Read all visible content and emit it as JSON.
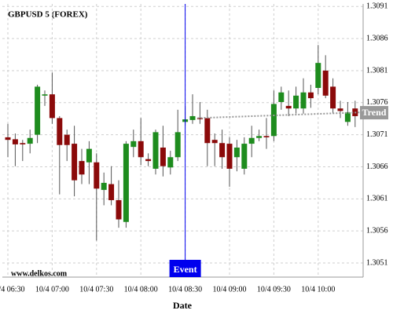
{
  "chart_data": {
    "type": "candlestick",
    "title": "GBPUSD 5 (FOREX)",
    "watermark": "www.delkos.com",
    "x_label": "Date",
    "categories": [
      "10/4 06:30",
      null,
      null,
      null,
      null,
      null,
      "10/4 07:00",
      null,
      null,
      null,
      null,
      null,
      "10/4 07:30",
      null,
      null,
      null,
      null,
      null,
      "10/4 08:00",
      null,
      null,
      null,
      null,
      null,
      "10/4 08:30",
      null,
      null,
      null,
      null,
      null,
      "10/4 09:00",
      null,
      null,
      null,
      null,
      null,
      "10/4 09:30",
      null,
      null,
      null,
      null,
      null,
      "10/4 10:00",
      null,
      null,
      null,
      null,
      null
    ],
    "series": [
      {
        "name": "GBPUSD",
        "open": [
          1.30706,
          1.30703,
          1.30697,
          1.30696,
          1.3071,
          1.30771,
          1.30773,
          1.30736,
          1.3071,
          1.30696,
          1.30669,
          1.30667,
          1.30667,
          1.30624,
          1.30633,
          1.30608,
          1.30574,
          1.30691,
          1.307,
          1.30672,
          1.30657,
          1.3069,
          1.30659,
          1.30675,
          1.3073,
          1.30733,
          1.30736,
          1.30736,
          1.30702,
          1.30697,
          1.30696,
          1.30675,
          1.30657,
          1.30696,
          1.30705,
          1.30708,
          1.30708,
          1.30761,
          1.30755,
          1.30751,
          1.30751,
          1.30776,
          1.30783,
          1.3081,
          1.30785,
          1.30751,
          1.3073,
          1.30751
        ],
        "high": [
          1.30727,
          1.30712,
          1.30702,
          1.30718,
          1.30788,
          1.30779,
          1.30807,
          1.30739,
          1.30718,
          1.30724,
          1.30688,
          1.307,
          1.30681,
          1.30651,
          1.30661,
          1.30639,
          1.307,
          1.30718,
          1.30736,
          1.30681,
          1.30718,
          1.30724,
          1.30685,
          1.30749,
          1.30755,
          1.30773,
          1.30761,
          1.30749,
          1.30712,
          1.30718,
          1.30706,
          1.30702,
          1.30706,
          1.30724,
          1.30718,
          1.30736,
          1.30779,
          1.30785,
          1.30779,
          1.30785,
          1.30798,
          1.30788,
          1.3085,
          1.30834,
          1.30798,
          1.30763,
          1.30761,
          1.30763
        ],
        "low": [
          1.30675,
          1.30661,
          1.30669,
          1.30681,
          1.30697,
          1.30755,
          1.30727,
          1.30617,
          1.30669,
          1.30614,
          1.30633,
          1.30633,
          1.30545,
          1.306,
          1.306,
          1.30565,
          1.30565,
          1.30675,
          1.30663,
          1.30661,
          1.30648,
          1.30645,
          1.30648,
          1.30669,
          1.30724,
          1.30727,
          1.30727,
          1.30661,
          1.30661,
          1.30657,
          1.30629,
          1.30653,
          1.30648,
          1.30675,
          1.307,
          1.30688,
          1.307,
          1.30749,
          1.30739,
          1.30743,
          1.30743,
          1.30752,
          1.30773,
          1.30767,
          1.30743,
          1.30736,
          1.30724,
          1.30722
        ],
        "close": [
          1.30702,
          1.30695,
          1.30695,
          1.30705,
          1.30785,
          1.30773,
          1.30736,
          1.30694,
          1.30694,
          1.30639,
          1.30648,
          1.30688,
          1.30626,
          1.30635,
          1.30608,
          1.30578,
          1.30696,
          1.307,
          1.30675,
          1.30669,
          1.30714,
          1.30661,
          1.30675,
          1.30714,
          1.30734,
          1.30739,
          1.30735,
          1.30697,
          1.30697,
          1.30675,
          1.30657,
          1.3069,
          1.30696,
          1.30705,
          1.30708,
          1.30706,
          1.30758,
          1.30776,
          1.30751,
          1.30771,
          1.30776,
          1.30767,
          1.30822,
          1.30771,
          1.30751,
          1.30747,
          1.30745,
          1.30739
        ]
      }
    ],
    "up_color": "#1e8c1e",
    "down_color": "#8b0a0a",
    "wick_color": "#555555",
    "ylim": [
      1.30488,
      1.30914
    ],
    "yticks": [
      1.3051,
      1.3056,
      1.3061,
      1.3066,
      1.3071,
      1.3076,
      1.3081,
      1.3086,
      1.3091
    ],
    "grid": true,
    "event": {
      "label": "Event",
      "x": "10/4 08:30",
      "color": "#0000ee"
    },
    "trend": {
      "label": "Trend",
      "values": [
        1.30736,
        1.30745
      ],
      "color": "#999999"
    }
  }
}
